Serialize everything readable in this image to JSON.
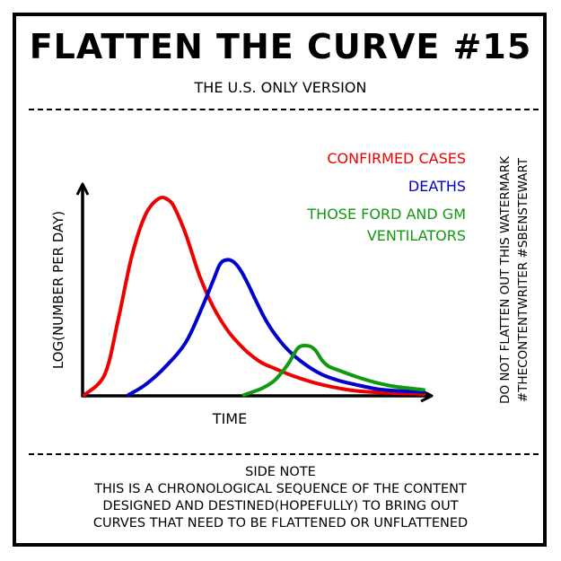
{
  "header": {
    "title": "FLATTEN THE CURVE #15",
    "subtitle": "THE U.S. ONLY VERSION"
  },
  "watermark": {
    "lines": [
      "DO NOT FLATTEN OUT THIS WATERMARK",
      "#THECONTENTWRITER #SBENSTEWART"
    ]
  },
  "footer": {
    "heading": "SIDE NOTE",
    "lines": [
      "THIS IS A CHRONOLOGICAL SEQUENCE OF THE CONTENT",
      "DESIGNED AND DESTINED(HOPEFULLY) TO BRING OUT",
      "CURVES THAT NEED TO BE FLATTENED OR UNFLATTENED"
    ]
  },
  "chart_data": {
    "type": "line",
    "xlabel": "TIME",
    "ylabel": "LOG(NUMBER PER DAY)",
    "xlim": [
      0,
      100
    ],
    "ylim": [
      0,
      100
    ],
    "grid": false,
    "axis_ticks": false,
    "legend_position": "top-right",
    "series": [
      {
        "name": "CONFIRMED CASES",
        "legend_lines": [
          "CONFIRMED CASES"
        ],
        "color": "#ee0000",
        "x": [
          0,
          6,
          10,
          14,
          18,
          22,
          25,
          27,
          30,
          34,
          38,
          42,
          45,
          48,
          52,
          56,
          62,
          70,
          80,
          90,
          100
        ],
        "y": [
          0,
          10,
          37,
          68,
          88,
          96,
          95,
          90,
          78,
          58,
          43,
          32,
          26,
          21,
          16,
          13,
          9,
          5,
          2,
          1,
          0.5
        ]
      },
      {
        "name": "DEATHS",
        "legend_lines": [
          "DEATHS"
        ],
        "color": "#0000cc",
        "x": [
          13,
          18,
          24,
          30,
          35,
          38,
          40,
          42,
          44,
          46,
          48,
          50,
          53,
          56,
          60,
          65,
          70,
          75,
          80,
          86,
          92,
          100
        ],
        "y": [
          0,
          5,
          14,
          26,
          44,
          56,
          64,
          66,
          65,
          61,
          55,
          48,
          38,
          30,
          22,
          15,
          10,
          7,
          5,
          3,
          2,
          1.5
        ]
      },
      {
        "name": "THOSE FORD AND GM VENTILATORS",
        "legend_lines": [
          "THOSE FORD AND GM",
          "VENTILATORS"
        ],
        "color": "#119911",
        "x": [
          47,
          52,
          56,
          60,
          63,
          66,
          68,
          70,
          72,
          75,
          80,
          86,
          92,
          100
        ],
        "y": [
          0,
          3,
          7,
          15,
          23,
          24,
          22,
          17,
          14,
          12,
          9,
          6,
          4,
          2.5
        ]
      }
    ]
  }
}
